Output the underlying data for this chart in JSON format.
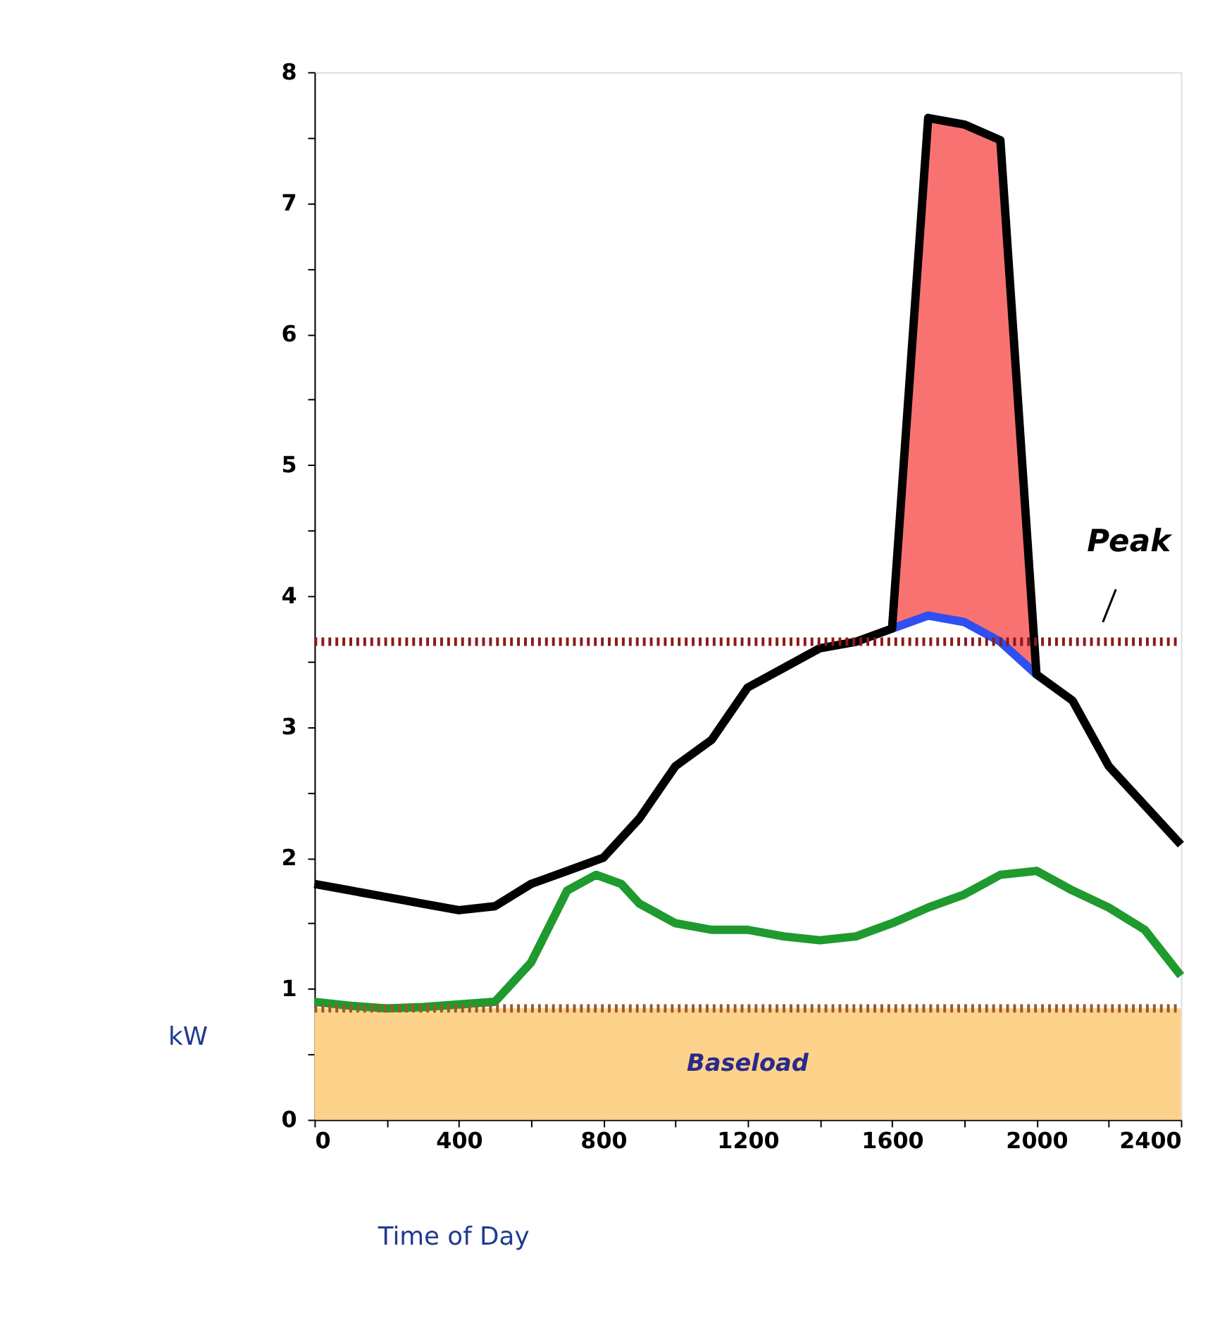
{
  "chart_data": {
    "type": "line",
    "xlabel": "Time of Day",
    "ylabel": "kW",
    "xlim": [
      0,
      2400
    ],
    "xticks": [
      0,
      {
        "value": 200,
        "label": null
      },
      400,
      {
        "value": 600,
        "label": null
      },
      800,
      {
        "value": 1000,
        "label": null
      },
      1200,
      {
        "value": 1400,
        "label": null
      },
      1600,
      {
        "value": 1800,
        "label": null
      },
      2000,
      {
        "value": 2200,
        "label": null
      },
      2400
    ],
    "ylim": [
      0,
      8
    ],
    "yticks": [
      0,
      {
        "value": 0.5,
        "label": null
      },
      1,
      {
        "value": 1.5,
        "label": null
      },
      2,
      {
        "value": 2.5,
        "label": null
      },
      3,
      {
        "value": 3.5,
        "label": null
      },
      4,
      {
        "value": 4.5,
        "label": null
      },
      5,
      {
        "value": 5.5,
        "label": null
      },
      6,
      {
        "value": 6.5,
        "label": null
      },
      7,
      {
        "value": 7.5,
        "label": null
      },
      8
    ],
    "grid": false,
    "marker": "none",
    "line_style": "solid",
    "bands": [
      {
        "axis": "y",
        "from": 0,
        "to": 0.85,
        "label": "Baseload",
        "color": "#fdd28a"
      }
    ],
    "ref_lines": [
      {
        "axis": "y",
        "value": 0.85,
        "color": "#9a5a2a",
        "line_style": "dotted"
      },
      {
        "axis": "y",
        "value": 3.65,
        "label": "Peak",
        "color": "#8b1a1a",
        "line_style": "dotted"
      }
    ],
    "series": [
      {
        "type": "area",
        "color": "#f97272",
        "x": [
          1600,
          1700,
          1800,
          1900,
          2000
        ],
        "values": [
          3.75,
          7.65,
          7.6,
          7.48,
          3.4
        ]
      },
      {
        "color": "#2f4ff0",
        "x": [
          1600,
          1700,
          1800,
          1900,
          2000
        ],
        "values": [
          3.75,
          3.85,
          3.8,
          3.65,
          3.4
        ]
      },
      {
        "color": "#000000",
        "x": [
          0,
          100,
          200,
          300,
          400,
          500,
          600,
          700,
          800,
          900,
          1000,
          1100,
          1200,
          1300,
          1400,
          1500,
          1600,
          1700,
          1800,
          1900,
          2000,
          2100,
          2200,
          2300,
          2400
        ],
        "values": [
          1.8,
          1.75,
          1.7,
          1.65,
          1.6,
          1.63,
          1.8,
          1.9,
          2.0,
          2.3,
          2.7,
          2.9,
          3.3,
          3.45,
          3.6,
          3.65,
          3.75,
          7.65,
          7.6,
          7.48,
          3.4,
          3.2,
          2.7,
          2.4,
          2.1
        ]
      },
      {
        "color": "#1f9a2e",
        "x": [
          0,
          100,
          200,
          300,
          400,
          500,
          600,
          700,
          780,
          850,
          900,
          1000,
          1100,
          1200,
          1300,
          1400,
          1500,
          1600,
          1700,
          1800,
          1900,
          2000,
          2100,
          2200,
          2300,
          2400
        ],
        "values": [
          0.9,
          0.87,
          0.85,
          0.86,
          0.88,
          0.9,
          1.2,
          1.75,
          1.87,
          1.8,
          1.65,
          1.5,
          1.45,
          1.45,
          1.4,
          1.37,
          1.4,
          1.5,
          1.62,
          1.72,
          1.87,
          1.9,
          1.75,
          1.62,
          1.45,
          1.1
        ]
      }
    ]
  }
}
